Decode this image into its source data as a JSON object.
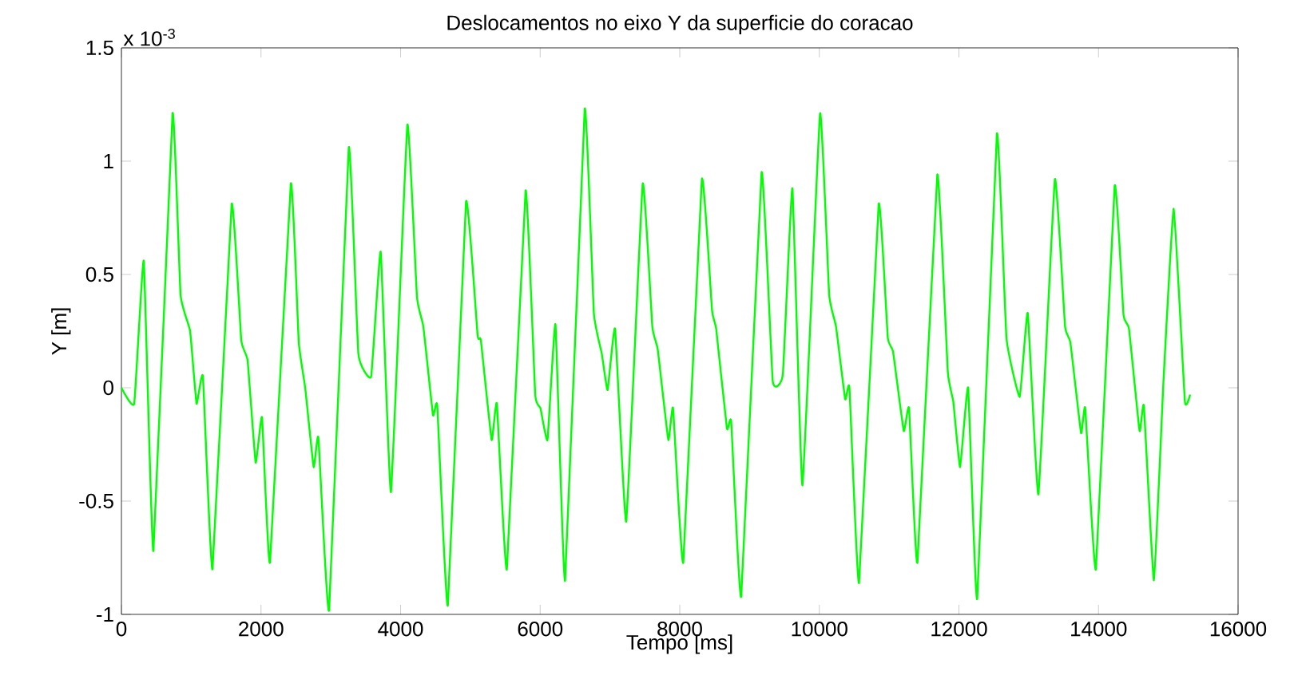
{
  "chart_data": {
    "type": "line",
    "title": "Deslocamentos no eixo Y da superficie do coracao",
    "xlabel": "Tempo [ms]",
    "ylabel": "Y [m]",
    "annotations": [
      "x 10$^{-3}$"
    ],
    "xlim": [
      0,
      16000
    ],
    "xticks": [
      0,
      2000,
      4000,
      6000,
      8000,
      10000,
      12000,
      14000,
      16000
    ],
    "ylim": [
      -1,
      1.5
    ],
    "yticks": [
      -1,
      -0.5,
      0,
      0.5,
      1,
      1.5
    ],
    "marker": "none",
    "line_style": "solid",
    "series": [
      {
        "color": "#00ff00",
        "x": [
          0,
          183,
          320,
          458,
          732,
          847,
          984,
          1076,
          1167,
          1305,
          1579,
          1717,
          1808,
          1923,
          2014,
          2129,
          2427,
          2541,
          2633,
          2754,
          2822,
          2976,
          3257,
          3395,
          3578,
          3715,
          3862,
          4097,
          4235,
          4326,
          4464,
          4525,
          4677,
          4937,
          5104,
          5150,
          5304,
          5379,
          5523,
          5791,
          5929,
          6004,
          6105,
          6219,
          6357,
          6638,
          6769,
          6883,
          6966,
          7073,
          7233,
          7469,
          7607,
          7684,
          7836,
          7904,
          8051,
          8316,
          8463,
          8522,
          8676,
          8737,
          8881,
          9172,
          9332,
          9477,
          9614,
          9758,
          10010,
          10141,
          10239,
          10370,
          10431,
          10569,
          10850,
          10981,
          11056,
          11209,
          11285,
          11406,
          11690,
          11841,
          11919,
          12017,
          12132,
          12262,
          12544,
          12681,
          12871,
          12986,
          13139,
          13375,
          13521,
          13597,
          13750,
          13810,
          13963,
          14231,
          14359,
          14437,
          14588,
          14650,
          14794,
          14931,
          15078,
          15238,
          15313
        ],
        "values": [
          0,
          -0.07,
          0.56,
          -0.72,
          1.21,
          0.41,
          0.25,
          -0.07,
          0.05,
          -0.8,
          0.81,
          0.21,
          0.12,
          -0.33,
          -0.13,
          -0.77,
          0.9,
          0.2,
          0,
          -0.35,
          -0.22,
          -0.98,
          1.06,
          0.15,
          0.05,
          0.6,
          -0.46,
          1.16,
          0.4,
          0.27,
          -0.12,
          -0.08,
          -0.96,
          0.82,
          0.23,
          0.21,
          -0.23,
          -0.07,
          -0.8,
          0.87,
          -0.03,
          -0.09,
          -0.23,
          0.28,
          -0.85,
          1.23,
          0.33,
          0.15,
          -0.01,
          0.26,
          -0.59,
          0.9,
          0.27,
          0.17,
          -0.23,
          -0.09,
          -0.77,
          0.92,
          0.34,
          0.26,
          -0.18,
          -0.15,
          -0.92,
          0.95,
          0.03,
          0.06,
          0.88,
          -0.43,
          1.21,
          0.41,
          0.27,
          -0.05,
          0,
          -0.86,
          0.81,
          0.22,
          0.16,
          -0.19,
          -0.09,
          -0.77,
          0.94,
          0.07,
          -0.06,
          -0.35,
          0,
          -0.93,
          1.12,
          0.22,
          -0.04,
          0.33,
          -0.47,
          0.92,
          0.27,
          0.2,
          -0.2,
          -0.09,
          -0.8,
          0.89,
          0.32,
          0.26,
          -0.19,
          -0.08,
          -0.85,
          0.03,
          0.79,
          -0.06,
          -0.03
        ]
      }
    ]
  }
}
